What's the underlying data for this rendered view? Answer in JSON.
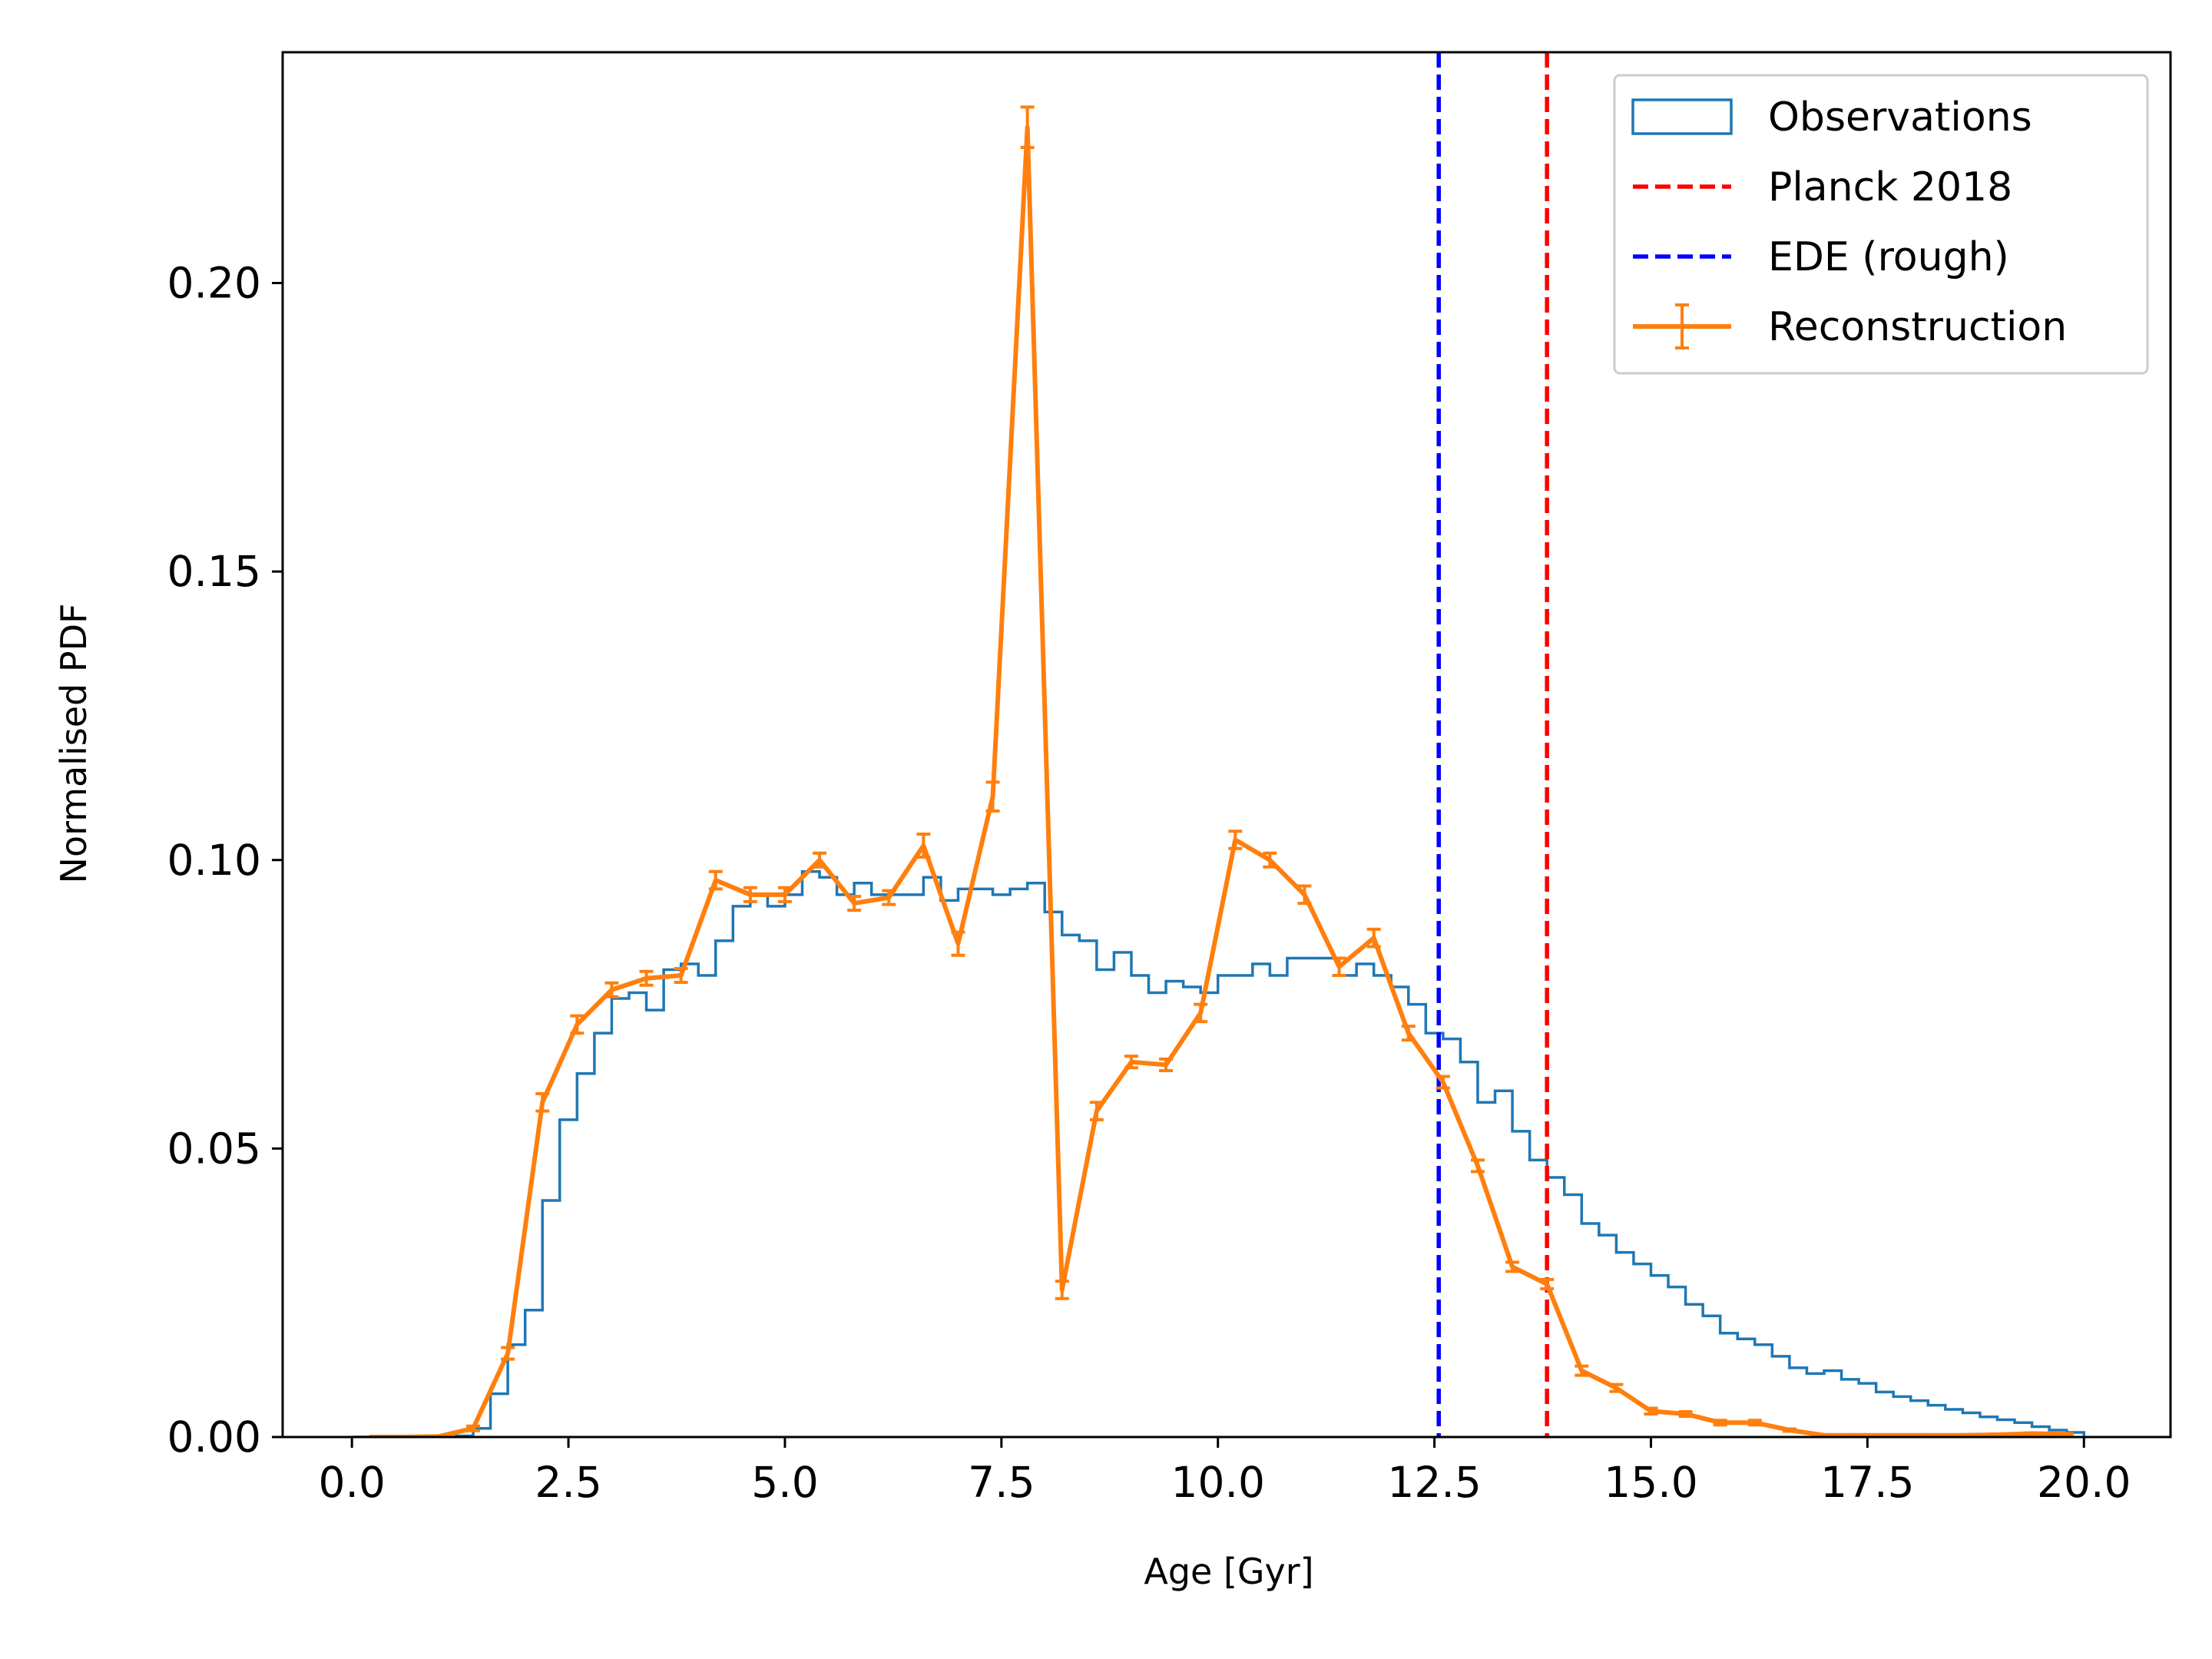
{
  "chart_data": {
    "type": "line",
    "title": "",
    "xlabel": "Age [Gyr]",
    "ylabel": "Normalised PDF",
    "xlim": [
      -0.8,
      21.0
    ],
    "ylim": [
      0.0,
      0.24
    ],
    "xticks": [
      "0.0",
      "2.5",
      "5.0",
      "7.5",
      "10.0",
      "12.5",
      "15.0",
      "17.5",
      "20.0"
    ],
    "yticks": [
      "0.00",
      "0.05",
      "0.10",
      "0.15",
      "0.20"
    ],
    "grid": false,
    "legend_position": "top-right",
    "colors": {
      "observations": "#1f77b4",
      "reconstruction": "#ff7f0e",
      "planck": "#ff0000",
      "ede": "#0000ff"
    },
    "histogram": {
      "name": "Observations",
      "bin_edges": [
        0.0,
        0.2,
        0.4,
        0.6,
        0.8,
        1.0,
        1.2,
        1.4,
        1.6,
        1.8,
        2.0,
        2.2,
        2.4,
        2.6,
        2.8,
        3.0,
        3.2,
        3.4,
        3.6,
        3.8,
        4.0,
        4.2,
        4.4,
        4.6,
        4.8,
        5.0,
        5.2,
        5.4,
        5.6,
        5.8,
        6.0,
        6.2,
        6.4,
        6.6,
        6.8,
        7.0,
        7.2,
        7.4,
        7.6,
        7.8,
        8.0,
        8.2,
        8.4,
        8.6,
        8.8,
        9.0,
        9.2,
        9.4,
        9.6,
        9.8,
        10.0,
        10.2,
        10.4,
        10.6,
        10.8,
        11.0,
        11.2,
        11.4,
        11.6,
        11.8,
        12.0,
        12.2,
        12.4,
        12.6,
        12.8,
        13.0,
        13.2,
        13.4,
        13.6,
        13.8,
        14.0,
        14.2,
        14.4,
        14.6,
        14.8,
        15.0,
        15.2,
        15.4,
        15.6,
        15.8,
        16.0,
        16.2,
        16.4,
        16.6,
        16.8,
        17.0,
        17.2,
        17.4,
        17.6,
        17.8,
        18.0,
        18.2,
        18.4,
        18.6,
        18.8,
        19.0,
        19.2,
        19.4,
        19.6,
        19.8,
        20.0
      ],
      "values": [
        0,
        0,
        0,
        0,
        0,
        0,
        0.0002,
        0.0015,
        0.0075,
        0.016,
        0.022,
        0.041,
        0.055,
        0.063,
        0.07,
        0.076,
        0.077,
        0.074,
        0.081,
        0.082,
        0.08,
        0.086,
        0.092,
        0.094,
        0.092,
        0.094,
        0.098,
        0.097,
        0.094,
        0.096,
        0.094,
        0.094,
        0.094,
        0.097,
        0.093,
        0.095,
        0.095,
        0.094,
        0.095,
        0.096,
        0.091,
        0.087,
        0.086,
        0.081,
        0.084,
        0.08,
        0.077,
        0.079,
        0.078,
        0.077,
        0.08,
        0.08,
        0.082,
        0.08,
        0.083,
        0.083,
        0.083,
        0.08,
        0.082,
        0.08,
        0.078,
        0.075,
        0.07,
        0.069,
        0.065,
        0.058,
        0.06,
        0.053,
        0.048,
        0.045,
        0.042,
        0.037,
        0.035,
        0.032,
        0.03,
        0.028,
        0.026,
        0.023,
        0.021,
        0.018,
        0.017,
        0.016,
        0.014,
        0.012,
        0.011,
        0.0115,
        0.01,
        0.0093,
        0.0078,
        0.007,
        0.0063,
        0.0055,
        0.0048,
        0.0042,
        0.0035,
        0.003,
        0.0025,
        0.0018,
        0.0012,
        0.0008
      ]
    },
    "series": [
      {
        "name": "Reconstruction",
        "x": [
          0.2,
          0.6,
          1.0,
          1.4,
          1.8,
          2.2,
          2.6,
          3.0,
          3.4,
          3.8,
          4.2,
          4.6,
          5.0,
          5.4,
          5.8,
          6.2,
          6.6,
          7.0,
          7.4,
          7.8,
          8.2,
          8.6,
          9.0,
          9.4,
          9.8,
          10.2,
          10.6,
          11.0,
          11.4,
          11.8,
          12.2,
          12.6,
          13.0,
          13.4,
          13.8,
          14.2,
          14.6,
          15.0,
          15.4,
          15.8,
          16.2,
          16.6,
          17.0,
          17.4,
          17.8,
          18.2,
          18.6,
          19.0,
          19.4,
          19.8
        ],
        "y": [
          0.0,
          0.0,
          0.0001,
          0.0015,
          0.0145,
          0.058,
          0.0715,
          0.0775,
          0.0795,
          0.08,
          0.0965,
          0.094,
          0.094,
          0.1,
          0.0925,
          0.0935,
          0.1025,
          0.0855,
          0.111,
          0.227,
          0.0255,
          0.0565,
          0.065,
          0.0645,
          0.0735,
          0.1035,
          0.1,
          0.094,
          0.0815,
          0.0865,
          0.07,
          0.0615,
          0.047,
          0.0295,
          0.0265,
          0.0115,
          0.0085,
          0.0045,
          0.004,
          0.0025,
          0.0025,
          0.0012,
          0.0003,
          0.0003,
          0.0003,
          0.0003,
          0.0003,
          0.0004,
          0.0006,
          0.0005
        ],
        "err": [
          0,
          0,
          0,
          0.0004,
          0.001,
          0.0015,
          0.0015,
          0.0012,
          0.0012,
          0.0012,
          0.0015,
          0.0012,
          0.0012,
          0.0012,
          0.0012,
          0.0012,
          0.002,
          0.002,
          0.0025,
          0.0035,
          0.0015,
          0.0015,
          0.001,
          0.001,
          0.0015,
          0.0015,
          0.0012,
          0.0015,
          0.0015,
          0.0015,
          0.0012,
          0.001,
          0.001,
          0.0008,
          0.0008,
          0.0008,
          0.0006,
          0.0005,
          0.0004,
          0.0004,
          0.0004,
          0.0002,
          0.0001,
          0.0001,
          0.0001,
          0.0001,
          0.0001,
          0.0001,
          0.0001,
          0.0001
        ]
      }
    ],
    "vlines": [
      {
        "name": "Planck 2018",
        "x": 13.8,
        "color": "#ff0000"
      },
      {
        "name": "EDE (rough)",
        "x": 12.55,
        "color": "#0000ff"
      }
    ],
    "legend": [
      "Observations",
      "Planck 2018",
      "EDE (rough)",
      "Reconstruction"
    ]
  }
}
